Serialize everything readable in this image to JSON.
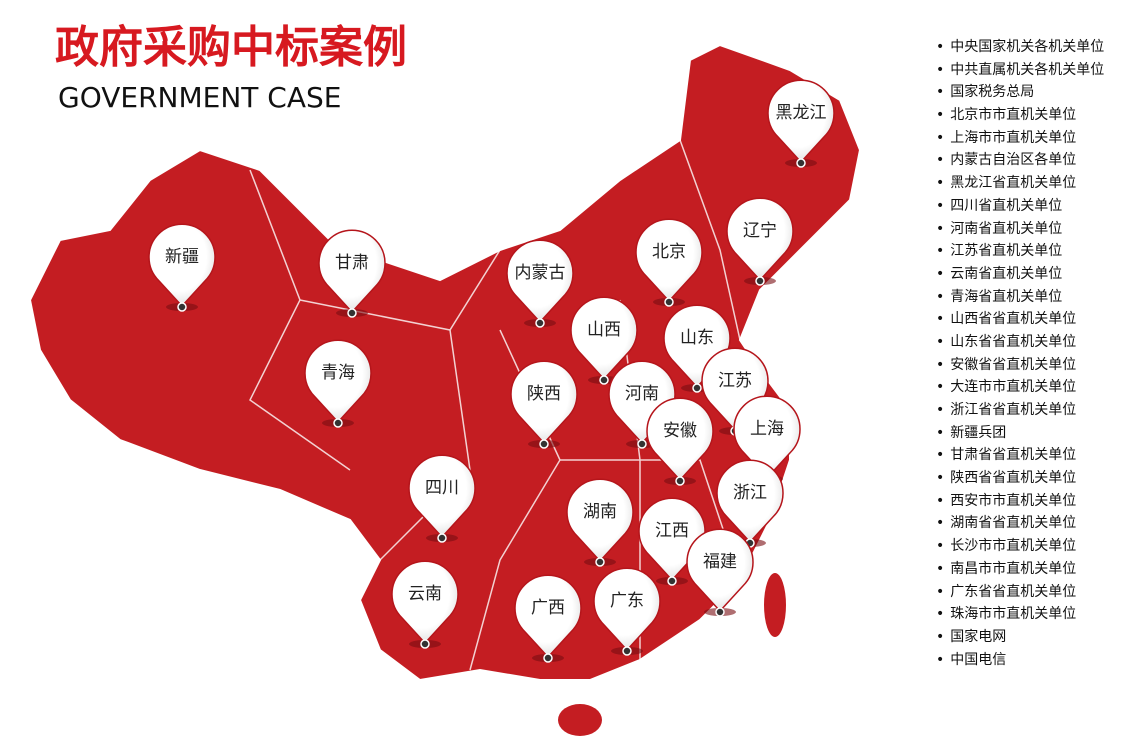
{
  "header": {
    "title": "政府采购中标案例",
    "subtitle": "GOVERNMENT CASE"
  },
  "pins": [
    {
      "label": "新疆"
    },
    {
      "label": "甘肃"
    },
    {
      "label": "内蒙古"
    },
    {
      "label": "北京"
    },
    {
      "label": "辽宁"
    },
    {
      "label": "黑龙江"
    },
    {
      "label": "山西"
    },
    {
      "label": "山东"
    },
    {
      "label": "青海"
    },
    {
      "label": "陕西"
    },
    {
      "label": "河南"
    },
    {
      "label": "江苏"
    },
    {
      "label": "安徽"
    },
    {
      "label": "上海"
    },
    {
      "label": "四川"
    },
    {
      "label": "湖南"
    },
    {
      "label": "浙江"
    },
    {
      "label": "江西"
    },
    {
      "label": "福建"
    },
    {
      "label": "云南"
    },
    {
      "label": "广西"
    },
    {
      "label": "广东"
    }
  ],
  "clients": [
    "中央国家机关各机关单位",
    "中共直属机关各机关单位",
    "国家税务总局",
    "北京市市直机关单位",
    "上海市市直机关单位",
    "内蒙古自治区各单位",
    "黑龙江省直机关单位",
    "四川省直机关单位",
    "河南省直机关单位",
    "江苏省直机关单位",
    "云南省直机关单位",
    "青海省直机关单位",
    "山西省省直机关单位",
    "山东省省直机关单位",
    "安徽省省直机关单位",
    "大连市市直机关单位",
    "浙江省省直机关单位",
    "新疆兵团",
    "甘肃省省直机关单位",
    "陕西省省直机关单位",
    "西安市市直机关单位",
    "湖南省省直机关单位",
    "长沙市市直机关单位",
    "南昌市市直机关单位",
    "广东省省直机关单位",
    "珠海市市直机关单位",
    "国家电网",
    "中国电信"
  ]
}
